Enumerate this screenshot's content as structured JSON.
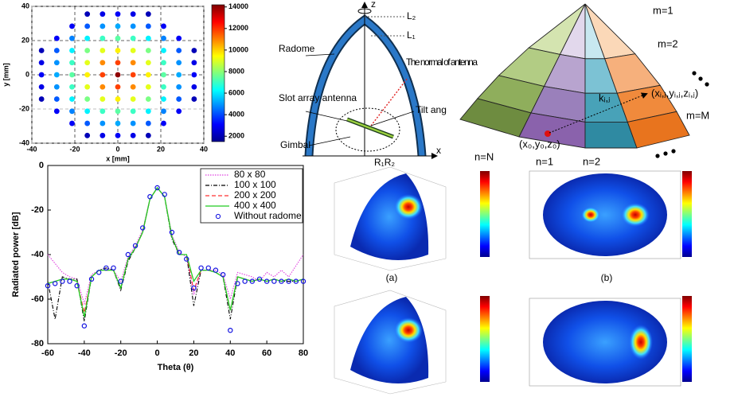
{
  "chart_data": [
    {
      "type": "scatter",
      "xlabel": "x [mm]",
      "ylabel": "y [mm]",
      "x": [
        -14.2,
        -7.1,
        0,
        7.1,
        14.2,
        -21.3,
        -14.2,
        -7.1,
        0,
        7.1,
        14.2,
        21.3,
        -28.4,
        -21.3,
        -14.2,
        -7.1,
        0,
        7.1,
        14.2,
        21.3,
        28.4,
        -35.5,
        -28.4,
        -21.3,
        -14.2,
        -7.1,
        0,
        7.1,
        14.2,
        21.3,
        28.4,
        35.5,
        -35.5,
        -28.4,
        -21.3,
        -14.2,
        -7.1,
        0,
        7.1,
        14.2,
        21.3,
        28.4,
        35.5,
        -35.5,
        -28.4,
        -21.3,
        -14.2,
        -7.1,
        0,
        7.1,
        14.2,
        21.3,
        28.4,
        35.5,
        -35.5,
        -28.4,
        -21.3,
        -14.2,
        -7.1,
        0,
        7.1,
        14.2,
        21.3,
        28.4,
        35.5,
        -35.5,
        -28.4,
        -21.3,
        -14.2,
        -7.1,
        0,
        7.1,
        14.2,
        21.3,
        28.4,
        35.5,
        -28.4,
        -21.3,
        -14.2,
        -7.1,
        0,
        7.1,
        14.2,
        21.3,
        28.4,
        -21.3,
        -14.2,
        -7.1,
        0,
        7.1,
        14.2,
        21.3,
        -14.2,
        -7.1,
        0,
        7.1,
        14.2
      ],
      "y": [
        35.5,
        35.5,
        35.5,
        35.5,
        35.5,
        28.4,
        28.4,
        28.4,
        28.4,
        28.4,
        28.4,
        28.4,
        21.3,
        21.3,
        21.3,
        21.3,
        21.3,
        21.3,
        21.3,
        21.3,
        21.3,
        14.2,
        14.2,
        14.2,
        14.2,
        14.2,
        14.2,
        14.2,
        14.2,
        14.2,
        14.2,
        14.2,
        7.1,
        7.1,
        7.1,
        7.1,
        7.1,
        7.1,
        7.1,
        7.1,
        7.1,
        7.1,
        7.1,
        0,
        0,
        0,
        0,
        0,
        0,
        0,
        0,
        0,
        0,
        0,
        -7.1,
        -7.1,
        -7.1,
        -7.1,
        -7.1,
        -7.1,
        -7.1,
        -7.1,
        -7.1,
        -7.1,
        -7.1,
        -14.2,
        -14.2,
        -14.2,
        -14.2,
        -14.2,
        -14.2,
        -14.2,
        -14.2,
        -14.2,
        -14.2,
        -14.2,
        -21.3,
        -21.3,
        -21.3,
        -21.3,
        -21.3,
        -21.3,
        -21.3,
        -21.3,
        -21.3,
        -28.4,
        -28.4,
        -28.4,
        -28.4,
        -28.4,
        -28.4,
        -28.4,
        -35.5,
        -35.5,
        -35.5,
        -35.5,
        -35.5
      ],
      "values": [
        2200,
        2800,
        3000,
        2800,
        2200,
        3000,
        4200,
        4900,
        5200,
        4900,
        4200,
        3000,
        3000,
        4700,
        6100,
        7000,
        7400,
        7000,
        6100,
        4700,
        3000,
        2200,
        4200,
        6100,
        7800,
        9100,
        9600,
        9100,
        7800,
        6100,
        4200,
        2200,
        2800,
        4900,
        7000,
        9100,
        10900,
        11800,
        10900,
        9100,
        7000,
        4900,
        2800,
        3000,
        5200,
        7400,
        9600,
        11800,
        14000,
        11800,
        9600,
        7400,
        5200,
        3000,
        2800,
        4900,
        7000,
        9100,
        10900,
        11800,
        10900,
        9100,
        7000,
        4900,
        2800,
        2200,
        4200,
        6100,
        7800,
        9100,
        9600,
        9100,
        7800,
        6100,
        4200,
        2200,
        3000,
        4700,
        6100,
        7000,
        7400,
        7000,
        6100,
        4700,
        3000,
        3000,
        4200,
        4900,
        5200,
        4900,
        4200,
        3000,
        2200,
        2800,
        3000,
        2800,
        2200
      ],
      "colormap": "jet",
      "clim": [
        1500,
        14200
      ],
      "cticks": [
        2000,
        4000,
        6000,
        8000,
        10000,
        12000,
        14000
      ],
      "xlim": [
        -40,
        40
      ],
      "ylim": [
        -40,
        40
      ],
      "xticks": [
        -40,
        -20,
        0,
        20,
        40
      ],
      "yticks": [
        -40,
        -20,
        0,
        20,
        40
      ],
      "grid": true
    },
    {
      "type": "line",
      "xlabel": "Theta (θ)",
      "ylabel": "Radiated power [dB]",
      "x": [
        -60,
        -56,
        -52,
        -48,
        -44,
        -40,
        -36,
        -32,
        -28,
        -24,
        -20,
        -16,
        -12,
        -8,
        -4,
        0,
        4,
        8,
        12,
        16,
        20,
        24,
        28,
        32,
        36,
        40,
        44,
        48,
        52,
        56,
        60,
        64,
        68,
        72,
        76,
        80
      ],
      "series": [
        {
          "name": "80 x 80",
          "color": "#e040e0",
          "linestyle": "dotted",
          "values": [
            -40,
            -44,
            -48,
            -50,
            -51,
            -62,
            -49,
            -47,
            -46,
            -47,
            -52,
            -41,
            -36,
            -29,
            -15,
            -10,
            -14,
            -31,
            -39,
            -41,
            -58,
            -47,
            -47,
            -47,
            -49,
            -60,
            -48,
            -49,
            -50,
            -52,
            -48,
            -50,
            -47,
            -50,
            -45,
            -40
          ]
        },
        {
          "name": "100 x 100",
          "color": "#000000",
          "linestyle": "dashdot",
          "values": [
            -52,
            -69,
            -50,
            -51,
            -51,
            -70,
            -50,
            -47,
            -46,
            -47,
            -56,
            -43,
            -37,
            -30,
            -15,
            -10,
            -14,
            -33,
            -40,
            -40,
            -63,
            -47,
            -47,
            -48,
            -50,
            -69,
            -50,
            -51,
            -52,
            -51,
            -52,
            -51,
            -52,
            -52,
            -52,
            -51
          ]
        },
        {
          "name": "200 x 200",
          "color": "#ff3030",
          "linestyle": "dashed",
          "values": [
            -53,
            -52,
            -51,
            -51,
            -52,
            -66,
            -50,
            -47,
            -47,
            -47,
            -55,
            -42,
            -37,
            -30,
            -15,
            -10,
            -14,
            -32,
            -40,
            -40,
            -56,
            -47,
            -47,
            -48,
            -50,
            -65,
            -50,
            -51,
            -52,
            -51,
            -52,
            -51,
            -52,
            -51,
            -52,
            -51
          ]
        },
        {
          "name": "400 x 400",
          "color": "#22cc22",
          "linestyle": "solid",
          "values": [
            -53,
            -52,
            -51,
            -51,
            -52,
            -68,
            -50,
            -47,
            -47,
            -47,
            -55,
            -42,
            -37,
            -30,
            -15,
            -10,
            -14,
            -32,
            -40,
            -40,
            -52,
            -47,
            -47,
            -48,
            -50,
            -65,
            -50,
            -51,
            -52,
            -51,
            -52,
            -51,
            -52,
            -51,
            -52,
            -51
          ]
        },
        {
          "name": "Without radome",
          "color": "#1010e0",
          "linestyle": "markers",
          "values": [
            -54,
            -53,
            -52,
            -52,
            -54,
            -72,
            -51,
            -48,
            -46,
            -46,
            -52,
            -40,
            -36,
            -28,
            -14,
            -10,
            -13,
            -30,
            -39,
            -42,
            -55,
            -46,
            -46,
            -47,
            -49,
            -74,
            -53,
            -52,
            -52,
            -51,
            -52,
            -52,
            -52,
            -52,
            -52,
            -52
          ]
        }
      ],
      "xlim": [
        -60,
        80
      ],
      "ylim": [
        -80,
        0
      ],
      "xticks": [
        -60,
        -40,
        -20,
        0,
        20,
        40,
        60,
        80
      ],
      "yticks": [
        -80,
        -60,
        -40,
        -20,
        0
      ],
      "legend": "upper right"
    }
  ],
  "radome_diagram": {
    "z": "z",
    "l2": "L₂",
    "l1": "L₁",
    "radome": "Radome",
    "normal": "The normal of antenna",
    "tilt": "Tilt ang",
    "antenna": "Slot array antenna",
    "gimbal": "Gimbal",
    "r": "R₁R₂",
    "x": "x"
  },
  "dome_diagram": {
    "m1": "m=1",
    "m2": "m=2",
    "mM": "m=M",
    "nN": "n=N",
    "n1": "n=1",
    "n2": "n=2",
    "origin": "(x₀,y₀,z₀)",
    "point": "(xᵢ,ⱼ,yᵢ,ⱼ,zᵢ,ⱼ)",
    "k": "kᵢ,ⱼ"
  },
  "field_maps": {
    "captions": [
      "(a)",
      "(b)"
    ]
  }
}
